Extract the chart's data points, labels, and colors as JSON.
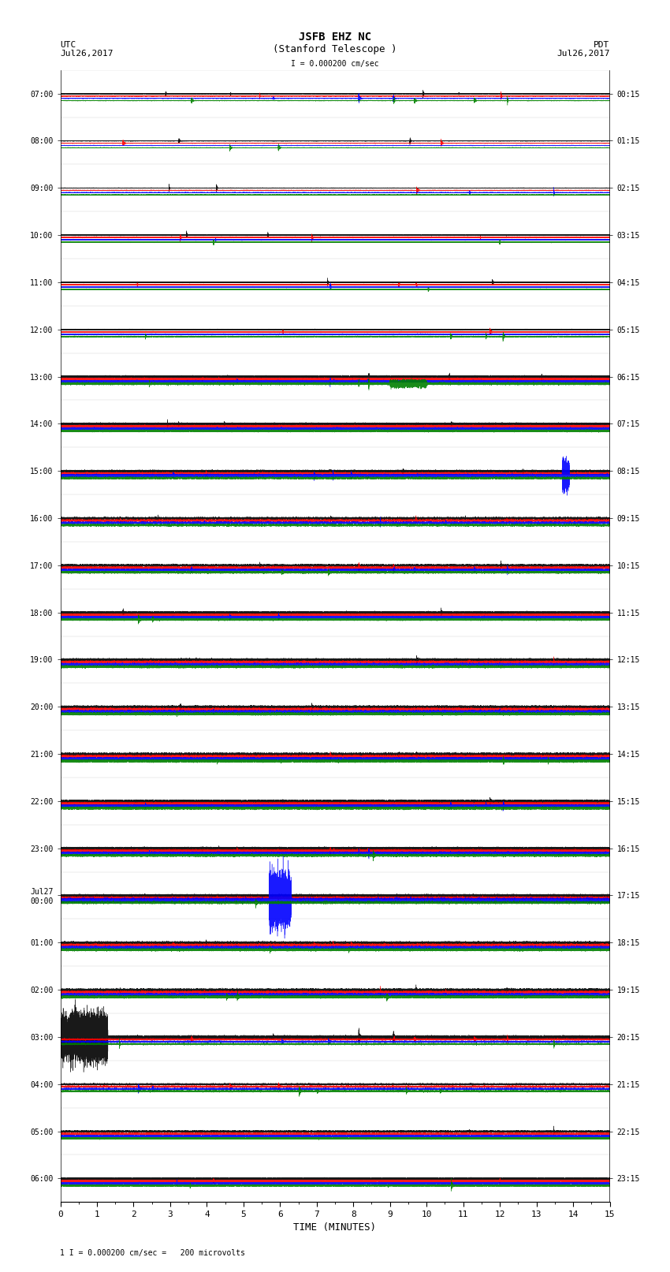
{
  "title_line1": "JSFB EHZ NC",
  "title_line2": "(Stanford Telescope )",
  "scale_label": "I = 0.000200 cm/sec",
  "utc_label": "UTC\nJul26,2017",
  "pdt_label": "PDT\nJul26,2017",
  "xlabel": "TIME (MINUTES)",
  "footnote": "1 I = 0.000200 cm/sec =   200 microvolts",
  "left_times": [
    "07:00",
    "08:00",
    "09:00",
    "10:00",
    "11:00",
    "12:00",
    "13:00",
    "14:00",
    "15:00",
    "16:00",
    "17:00",
    "18:00",
    "19:00",
    "20:00",
    "21:00",
    "22:00",
    "23:00",
    "Jul27\n00:00",
    "01:00",
    "02:00",
    "03:00",
    "04:00",
    "05:00",
    "06:00"
  ],
  "right_times": [
    "00:15",
    "01:15",
    "02:15",
    "03:15",
    "04:15",
    "05:15",
    "06:15",
    "07:15",
    "08:15",
    "09:15",
    "10:15",
    "11:15",
    "12:15",
    "13:15",
    "14:15",
    "15:15",
    "16:15",
    "17:15",
    "18:15",
    "19:15",
    "20:15",
    "21:15",
    "22:15",
    "23:15"
  ],
  "colors": [
    "black",
    "red",
    "blue",
    "green"
  ],
  "n_rows": 24,
  "traces_per_row": 4,
  "minutes": 15,
  "sample_rate": 100,
  "bg_color": "white",
  "fig_width": 8.5,
  "fig_height": 16.13
}
